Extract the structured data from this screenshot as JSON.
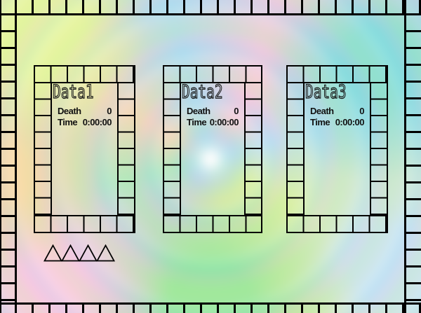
{
  "panels": [
    {
      "title": "Data1",
      "death_label": "Death",
      "death_value": "0",
      "time_label": "Time",
      "time_value": "0:00:00"
    },
    {
      "title": "Data2",
      "death_label": "Death",
      "death_value": "0",
      "time_label": "Time",
      "time_value": "0:00:00"
    },
    {
      "title": "Data3",
      "death_label": "Death",
      "death_value": "0",
      "time_label": "Time",
      "time_value": "0:00:00"
    }
  ],
  "decorations": {
    "triangle_count": 4,
    "triangle_glyph": "△"
  },
  "colors": {
    "grid_line": "#000000",
    "text": "#111111",
    "swirl_palette": [
      "#e3f59c",
      "#7cdcd9",
      "#f5c4e2",
      "#f8d7a6",
      "#f7c8e2",
      "#8ee698",
      "#c4e3f3",
      "#f2e9a8",
      "#ffffff"
    ]
  }
}
